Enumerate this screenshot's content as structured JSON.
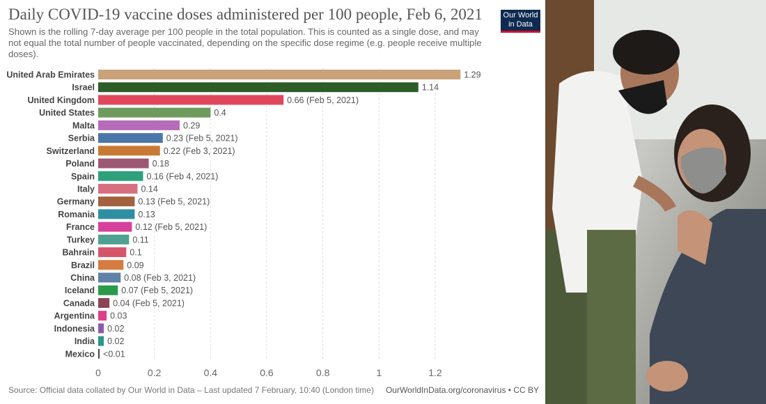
{
  "header": {
    "title": "Daily COVID-19 vaccine doses administered per 100 people, Feb 6, 2021",
    "subtitle": "Shown is the rolling 7-day average per 100 people in the total population. This is counted as a single dose, and may not equal the total number of people vaccinated, depending on the specific dose regime (e.g. people receive multiple doses).",
    "logo": "Our World in Data"
  },
  "footer": {
    "source": "Source: Official data collated by Our World in Data – Last updated 7 February, 10:40 (London time)",
    "credit": "OurWorldInData.org/coronavirus • CC BY"
  },
  "chart_data": {
    "type": "bar",
    "orientation": "horizontal",
    "title": "Daily COVID-19 vaccine doses administered per 100 people, Feb 6, 2021",
    "xlim": [
      0,
      1.3
    ],
    "xticks": [
      "0",
      "0.2",
      "0.4",
      "0.6",
      "0.8",
      "1",
      "1.2"
    ],
    "grid": true,
    "categories": [
      "United Arab Emirates",
      "Israel",
      "United Kingdom",
      "United States",
      "Malta",
      "Serbia",
      "Switzerland",
      "Poland",
      "Spain",
      "Italy",
      "Germany",
      "Romania",
      "France",
      "Turkey",
      "Bahrain",
      "Brazil",
      "China",
      "Iceland",
      "Canada",
      "Argentina",
      "Indonesia",
      "India",
      "Mexico"
    ],
    "values": [
      1.29,
      1.14,
      0.66,
      0.4,
      0.29,
      0.23,
      0.22,
      0.18,
      0.16,
      0.14,
      0.13,
      0.13,
      0.12,
      0.11,
      0.1,
      0.09,
      0.08,
      0.07,
      0.04,
      0.03,
      0.02,
      0.02,
      0.005
    ],
    "labels": [
      "1.29",
      "1.14",
      "0.66 (Feb 5, 2021)",
      "0.4",
      "0.29",
      "0.23 (Feb 5, 2021)",
      "0.22 (Feb 3, 2021)",
      "0.18",
      "0.16 (Feb 4, 2021)",
      "0.14",
      "0.13 (Feb 5, 2021)",
      "0.13",
      "0.12 (Feb 5, 2021)",
      "0.11",
      "0.1",
      "0.09",
      "0.08 (Feb 3, 2021)",
      "0.07 (Feb 5, 2021)",
      "0.04 (Feb 5, 2021)",
      "0.03",
      "0.02",
      "0.02",
      "<0.01"
    ],
    "colors": [
      "#c9a27a",
      "#2d5c27",
      "#e0475d",
      "#6f9a5e",
      "#b66cb8",
      "#4b76a8",
      "#c87a35",
      "#9c5873",
      "#2ea07b",
      "#d86f81",
      "#a3613f",
      "#2e8fa4",
      "#d6419c",
      "#4fa192",
      "#d5566b",
      "#d67b41",
      "#5f80a7",
      "#2b9a4b",
      "#8a4454",
      "#df3f89",
      "#8c5aa3",
      "#2b9789",
      "#444444"
    ]
  }
}
